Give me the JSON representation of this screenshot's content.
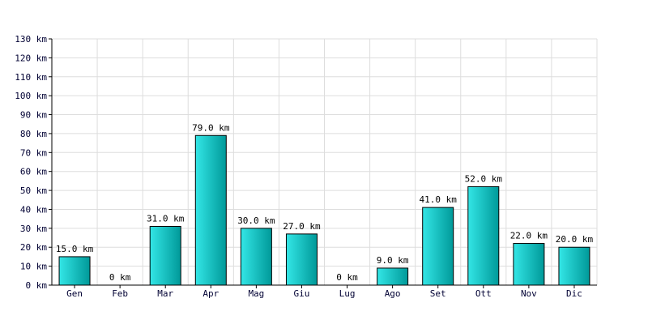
{
  "chart_data": {
    "type": "bar",
    "categories": [
      "Gen",
      "Feb",
      "Mar",
      "Apr",
      "Mag",
      "Giu",
      "Lug",
      "Ago",
      "Set",
      "Ott",
      "Nov",
      "Dic"
    ],
    "values": [
      15.0,
      0,
      31.0,
      79.0,
      30.0,
      27.0,
      0,
      9.0,
      41.0,
      52.0,
      22.0,
      20.0
    ],
    "data_labels": [
      "15.0 km",
      "0 km",
      "31.0 km",
      "79.0 km",
      "30.0 km",
      "27.0 km",
      "0 km",
      "9.0 km",
      "41.0 km",
      "52.0 km",
      "22.0 km",
      "20.0 km"
    ],
    "y_ticks": [
      {
        "value": 0,
        "label": "0 km"
      },
      {
        "value": 10,
        "label": "10 km"
      },
      {
        "value": 20,
        "label": "20 km"
      },
      {
        "value": 30,
        "label": "30 km"
      },
      {
        "value": 40,
        "label": "40 km"
      },
      {
        "value": 50,
        "label": "50 km"
      },
      {
        "value": 60,
        "label": "60 km"
      },
      {
        "value": 70,
        "label": "70 km"
      },
      {
        "value": 80,
        "label": "80 km"
      },
      {
        "value": 90,
        "label": "90 km"
      },
      {
        "value": 100,
        "label": "100 km"
      },
      {
        "value": 110,
        "label": "110 km"
      },
      {
        "value": 120,
        "label": "120 km"
      },
      {
        "value": 130,
        "label": "130 km"
      }
    ],
    "ylim": [
      0,
      130
    ],
    "grid": true,
    "colors": {
      "bar_light": "#33e6e6",
      "bar_dark": "#009999",
      "bar_stroke": "#000000",
      "grid": "#dddddd",
      "axis": "#000000"
    }
  }
}
